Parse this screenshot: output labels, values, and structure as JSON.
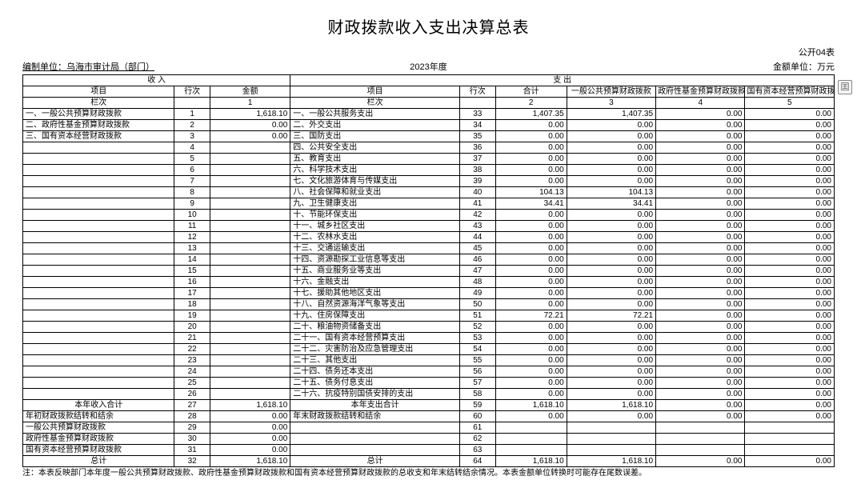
{
  "title": "财政拨款收入支出决算总表",
  "form_code": "公开04表",
  "org_label": "编制单位：乌海市审计局（部门）",
  "period": "2023年度",
  "unit": "金额单位：万元",
  "header": {
    "income": "收   入",
    "expense": "支   出",
    "item": "项目",
    "rownum": "行次",
    "amount": "金额",
    "total": "合计",
    "c1": "一般公共预算财政拨款",
    "c2": "政府性基金预算财政拨款",
    "c3": "国有资本经营预算财政拨款",
    "col_index": "栏次",
    "idx": [
      "1",
      "2",
      "3",
      "4",
      "5"
    ]
  },
  "rows": [
    {
      "li": "一、一般公共预算财政拨款",
      "ln": "1",
      "la": "1,618.10",
      "ri": "一、一般公共服务支出",
      "rn": "33",
      "t": "1,407.35",
      "a": "1,407.35",
      "b": "0.00",
      "c": "0.00"
    },
    {
      "li": "二、政府性基金预算财政拨款",
      "ln": "2",
      "la": "0.00",
      "ri": "二、外交支出",
      "rn": "34",
      "t": "0.00",
      "a": "0.00",
      "b": "0.00",
      "c": "0.00"
    },
    {
      "li": "三、国有资本经营财政拨款",
      "ln": "3",
      "la": "0.00",
      "ri": "三、国防支出",
      "rn": "35",
      "t": "0.00",
      "a": "0.00",
      "b": "0.00",
      "c": "0.00"
    },
    {
      "li": "",
      "ln": "4",
      "la": "",
      "ri": "四、公共安全支出",
      "rn": "36",
      "t": "0.00",
      "a": "0.00",
      "b": "0.00",
      "c": "0.00"
    },
    {
      "li": "",
      "ln": "5",
      "la": "",
      "ri": "五、教育支出",
      "rn": "37",
      "t": "0.00",
      "a": "0.00",
      "b": "0.00",
      "c": "0.00"
    },
    {
      "li": "",
      "ln": "6",
      "la": "",
      "ri": "六、科学技术支出",
      "rn": "38",
      "t": "0.00",
      "a": "0.00",
      "b": "0.00",
      "c": "0.00"
    },
    {
      "li": "",
      "ln": "7",
      "la": "",
      "ri": "七、文化旅游体育与传媒支出",
      "rn": "39",
      "t": "0.00",
      "a": "0.00",
      "b": "0.00",
      "c": "0.00"
    },
    {
      "li": "",
      "ln": "8",
      "la": "",
      "ri": "八、社会保障和就业支出",
      "rn": "40",
      "t": "104.13",
      "a": "104.13",
      "b": "0.00",
      "c": "0.00"
    },
    {
      "li": "",
      "ln": "9",
      "la": "",
      "ri": "九、卫生健康支出",
      "rn": "41",
      "t": "34.41",
      "a": "34.41",
      "b": "0.00",
      "c": "0.00"
    },
    {
      "li": "",
      "ln": "10",
      "la": "",
      "ri": "十、节能环保支出",
      "rn": "42",
      "t": "0.00",
      "a": "0.00",
      "b": "0.00",
      "c": "0.00"
    },
    {
      "li": "",
      "ln": "11",
      "la": "",
      "ri": "十一、城乡社区支出",
      "rn": "43",
      "t": "0.00",
      "a": "0.00",
      "b": "0.00",
      "c": "0.00"
    },
    {
      "li": "",
      "ln": "12",
      "la": "",
      "ri": "十二、农林水支出",
      "rn": "44",
      "t": "0.00",
      "a": "0.00",
      "b": "0.00",
      "c": "0.00"
    },
    {
      "li": "",
      "ln": "13",
      "la": "",
      "ri": "十三、交通运输支出",
      "rn": "45",
      "t": "0.00",
      "a": "0.00",
      "b": "0.00",
      "c": "0.00"
    },
    {
      "li": "",
      "ln": "14",
      "la": "",
      "ri": "十四、资源勘探工业信息等支出",
      "rn": "46",
      "t": "0.00",
      "a": "0.00",
      "b": "0.00",
      "c": "0.00"
    },
    {
      "li": "",
      "ln": "15",
      "la": "",
      "ri": "十五、商业服务业等支出",
      "rn": "47",
      "t": "0.00",
      "a": "0.00",
      "b": "0.00",
      "c": "0.00"
    },
    {
      "li": "",
      "ln": "16",
      "la": "",
      "ri": "十六、金融支出",
      "rn": "48",
      "t": "0.00",
      "a": "0.00",
      "b": "0.00",
      "c": "0.00"
    },
    {
      "li": "",
      "ln": "17",
      "la": "",
      "ri": "十七、援助其他地区支出",
      "rn": "49",
      "t": "0.00",
      "a": "0.00",
      "b": "0.00",
      "c": "0.00"
    },
    {
      "li": "",
      "ln": "18",
      "la": "",
      "ri": "十八、自然资源海洋气象等支出",
      "rn": "50",
      "t": "0.00",
      "a": "0.00",
      "b": "0.00",
      "c": "0.00"
    },
    {
      "li": "",
      "ln": "19",
      "la": "",
      "ri": "十九、住房保障支出",
      "rn": "51",
      "t": "72.21",
      "a": "72.21",
      "b": "0.00",
      "c": "0.00"
    },
    {
      "li": "",
      "ln": "20",
      "la": "",
      "ri": "二十、粮油物资储备支出",
      "rn": "52",
      "t": "0.00",
      "a": "0.00",
      "b": "0.00",
      "c": "0.00"
    },
    {
      "li": "",
      "ln": "21",
      "la": "",
      "ri": "二十一、国有资本经营预算支出",
      "rn": "53",
      "t": "0.00",
      "a": "0.00",
      "b": "0.00",
      "c": "0.00"
    },
    {
      "li": "",
      "ln": "22",
      "la": "",
      "ri": "二十二、灾害防治及应急管理支出",
      "rn": "54",
      "t": "0.00",
      "a": "0.00",
      "b": "0.00",
      "c": "0.00"
    },
    {
      "li": "",
      "ln": "23",
      "la": "",
      "ri": "二十三、其他支出",
      "rn": "55",
      "t": "0.00",
      "a": "0.00",
      "b": "0.00",
      "c": "0.00"
    },
    {
      "li": "",
      "ln": "24",
      "la": "",
      "ri": "二十四、债务还本支出",
      "rn": "56",
      "t": "0.00",
      "a": "0.00",
      "b": "0.00",
      "c": "0.00"
    },
    {
      "li": "",
      "ln": "25",
      "la": "",
      "ri": "二十五、债务付息支出",
      "rn": "57",
      "t": "0.00",
      "a": "0.00",
      "b": "0.00",
      "c": "0.00"
    },
    {
      "li": "",
      "ln": "26",
      "la": "",
      "ri": "二十六、抗疫特别国债安排的支出",
      "rn": "58",
      "t": "0.00",
      "a": "0.00",
      "b": "0.00",
      "c": "0.00"
    }
  ],
  "summary": [
    {
      "li": "本年收入合计",
      "ln": "27",
      "la": "1,618.10",
      "ri": "本年支出合计",
      "rn": "59",
      "t": "1,618.10",
      "a": "1,618.10",
      "b": "0.00",
      "c": "0.00"
    },
    {
      "li": "年初财政拨款结转和结余",
      "ln": "28",
      "la": "0.00",
      "ri": "年末财政拨款结转和结余",
      "rn": "60",
      "t": "0.00",
      "a": "0.00",
      "b": "0.00",
      "c": "0.00"
    },
    {
      "li": "  一般公共预算财政拨款",
      "ln": "29",
      "la": "0.00",
      "ri": "",
      "rn": "61",
      "t": "",
      "a": "",
      "b": "",
      "c": ""
    },
    {
      "li": "  政府性基金预算财政拨款",
      "ln": "30",
      "la": "0.00",
      "ri": "",
      "rn": "62",
      "t": "",
      "a": "",
      "b": "",
      "c": ""
    },
    {
      "li": "  国有资本经营预算财政拨款",
      "ln": "31",
      "la": "0.00",
      "ri": "",
      "rn": "63",
      "t": "",
      "a": "",
      "b": "",
      "c": ""
    },
    {
      "li": "总计",
      "ln": "32",
      "la": "1,618.10",
      "ri": "总计",
      "rn": "64",
      "t": "1,618.10",
      "a": "1,618.10",
      "b": "0.00",
      "c": "0.00"
    }
  ],
  "note": "注：本表反映部门本年度一般公共预算财政拨款、政府性基金预算财政拨款和国有资本经营预算财政拨款的总收支和年末结转结余情况。本表金额单位转换时可能存在尾数误差。",
  "side_icon": "囯"
}
